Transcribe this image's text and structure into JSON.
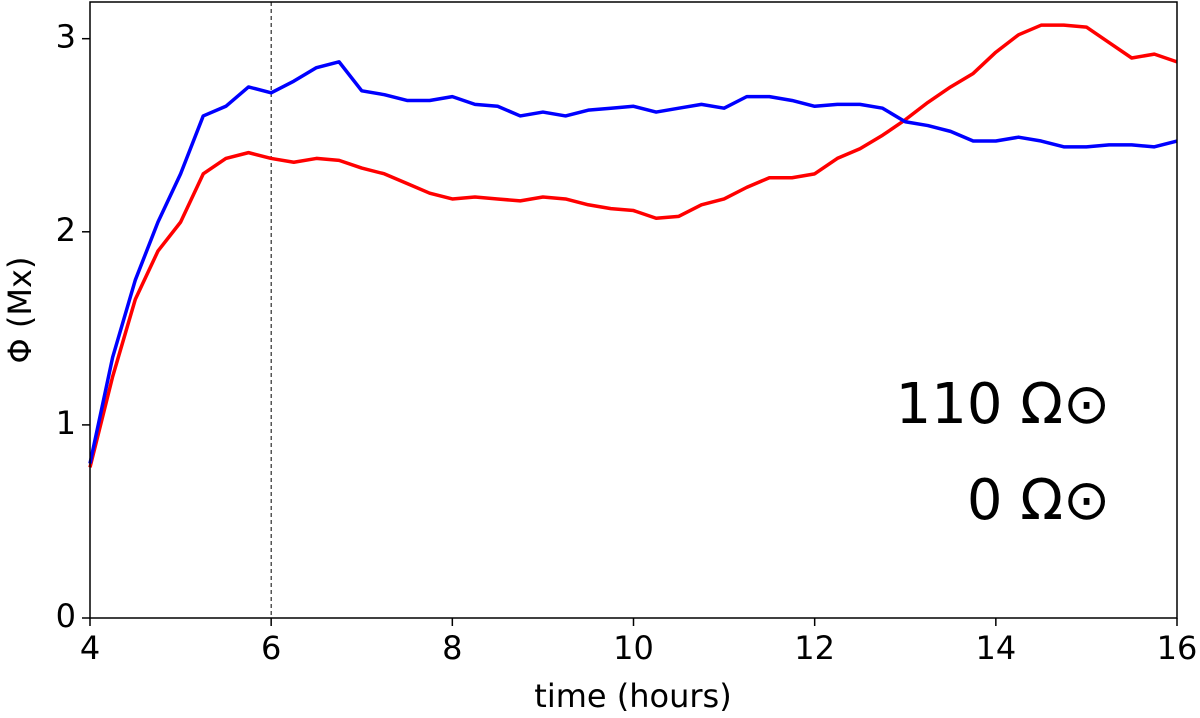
{
  "chart_data": {
    "type": "line",
    "xlabel": "time (hours)",
    "ylabel": "Φ (Mx)",
    "x": [
      4.0,
      4.25,
      4.5,
      4.75,
      5.0,
      5.25,
      5.5,
      5.75,
      6.0,
      6.25,
      6.5,
      6.75,
      7.0,
      7.25,
      7.5,
      7.75,
      8.0,
      8.25,
      8.5,
      8.75,
      9.0,
      9.25,
      9.5,
      9.75,
      10.0,
      10.25,
      10.5,
      10.75,
      11.0,
      11.25,
      11.5,
      11.75,
      12.0,
      12.25,
      12.5,
      12.75,
      13.0,
      13.25,
      13.5,
      13.75,
      14.0,
      14.25,
      14.5,
      14.75,
      15.0,
      15.25,
      15.5,
      15.75,
      16.0
    ],
    "series": [
      {
        "name": "110 Ω⊙",
        "color": "#ff0000",
        "values": [
          0.78,
          1.25,
          1.65,
          1.9,
          2.05,
          2.3,
          2.38,
          2.41,
          2.38,
          2.36,
          2.38,
          2.37,
          2.33,
          2.3,
          2.25,
          2.2,
          2.17,
          2.18,
          2.17,
          2.16,
          2.18,
          2.17,
          2.14,
          2.12,
          2.11,
          2.07,
          2.08,
          2.14,
          2.17,
          2.23,
          2.28,
          2.28,
          2.3,
          2.38,
          2.43,
          2.5,
          2.58,
          2.67,
          2.75,
          2.82,
          2.93,
          3.02,
          3.07,
          3.07,
          3.06,
          2.98,
          2.9,
          2.92,
          2.88
        ]
      },
      {
        "name": "0 Ω⊙",
        "color": "#0000ff",
        "values": [
          0.8,
          1.35,
          1.75,
          2.05,
          2.3,
          2.6,
          2.65,
          2.75,
          2.72,
          2.78,
          2.85,
          2.88,
          2.73,
          2.71,
          2.68,
          2.68,
          2.7,
          2.66,
          2.65,
          2.6,
          2.62,
          2.6,
          2.63,
          2.64,
          2.65,
          2.62,
          2.64,
          2.66,
          2.64,
          2.7,
          2.7,
          2.68,
          2.65,
          2.66,
          2.66,
          2.64,
          2.57,
          2.55,
          2.52,
          2.47,
          2.47,
          2.49,
          2.47,
          2.44,
          2.44,
          2.45,
          2.45,
          2.44,
          2.47
        ]
      }
    ],
    "xlim": [
      4,
      16
    ],
    "ylim": [
      0,
      3.19
    ],
    "xticks": [
      4,
      6,
      8,
      10,
      12,
      14,
      16
    ],
    "yticks": [
      0,
      1,
      2,
      3
    ],
    "vline": 6,
    "grid": false
  }
}
